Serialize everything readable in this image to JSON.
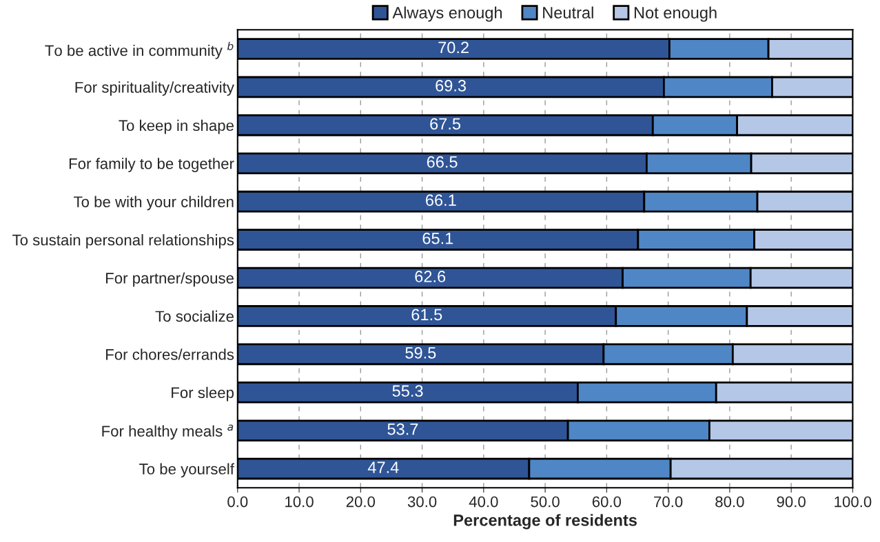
{
  "chart_data": {
    "type": "bar",
    "orientation": "horizontal",
    "stacked": true,
    "xlabel": "Percentage of residents",
    "categories": [
      "To be active in community $^{b}$",
      "For spirituality/creativity",
      "To keep in shape",
      "For family to be together",
      "To be with your children",
      "To sustain personal relationships",
      "For partner/spouse",
      "To socialize",
      "For chores/errands",
      "For sleep",
      "For healthy meals $^{a}$",
      "To be yourself"
    ],
    "series": [
      {
        "name": "Always enough",
        "color": "#2f5597",
        "values": [
          70.2,
          69.3,
          67.5,
          66.5,
          66.1,
          65.1,
          62.6,
          61.5,
          59.5,
          55.3,
          53.7,
          47.4
        ],
        "value_labels": [
          "70.2",
          "69.3",
          "67.5",
          "66.5",
          "66.1",
          "65.1",
          "62.6",
          "61.5",
          "59.5",
          "55.3",
          "53.7",
          "47.4"
        ]
      },
      {
        "name": "Neutral",
        "color": "#4f86c6",
        "values": [
          16.1,
          17.6,
          13.7,
          17.0,
          18.4,
          18.9,
          20.8,
          21.3,
          21.0,
          22.5,
          23.0,
          23.0
        ]
      },
      {
        "name": "Not enough",
        "color": "#b4c7e7",
        "values": [
          13.7,
          13.1,
          18.8,
          16.5,
          15.5,
          16.0,
          16.6,
          17.2,
          19.5,
          22.2,
          23.3,
          29.6
        ]
      }
    ],
    "xlim": [
      0,
      100
    ],
    "xticks": [
      {
        "value": 0,
        "label": "0.0"
      },
      {
        "value": 10,
        "label": "10.0"
      },
      {
        "value": 20,
        "label": "20.0"
      },
      {
        "value": 30,
        "label": "30.0"
      },
      {
        "value": 40,
        "label": "40.0"
      },
      {
        "value": 50,
        "label": "50.0"
      },
      {
        "value": 60,
        "label": "60.0"
      },
      {
        "value": 70,
        "label": "70.0"
      },
      {
        "value": 80,
        "label": "80.0"
      },
      {
        "value": 90,
        "label": "90.0"
      },
      {
        "value": 100,
        "label": "100.0"
      }
    ],
    "grid": "x",
    "legend": "top"
  }
}
